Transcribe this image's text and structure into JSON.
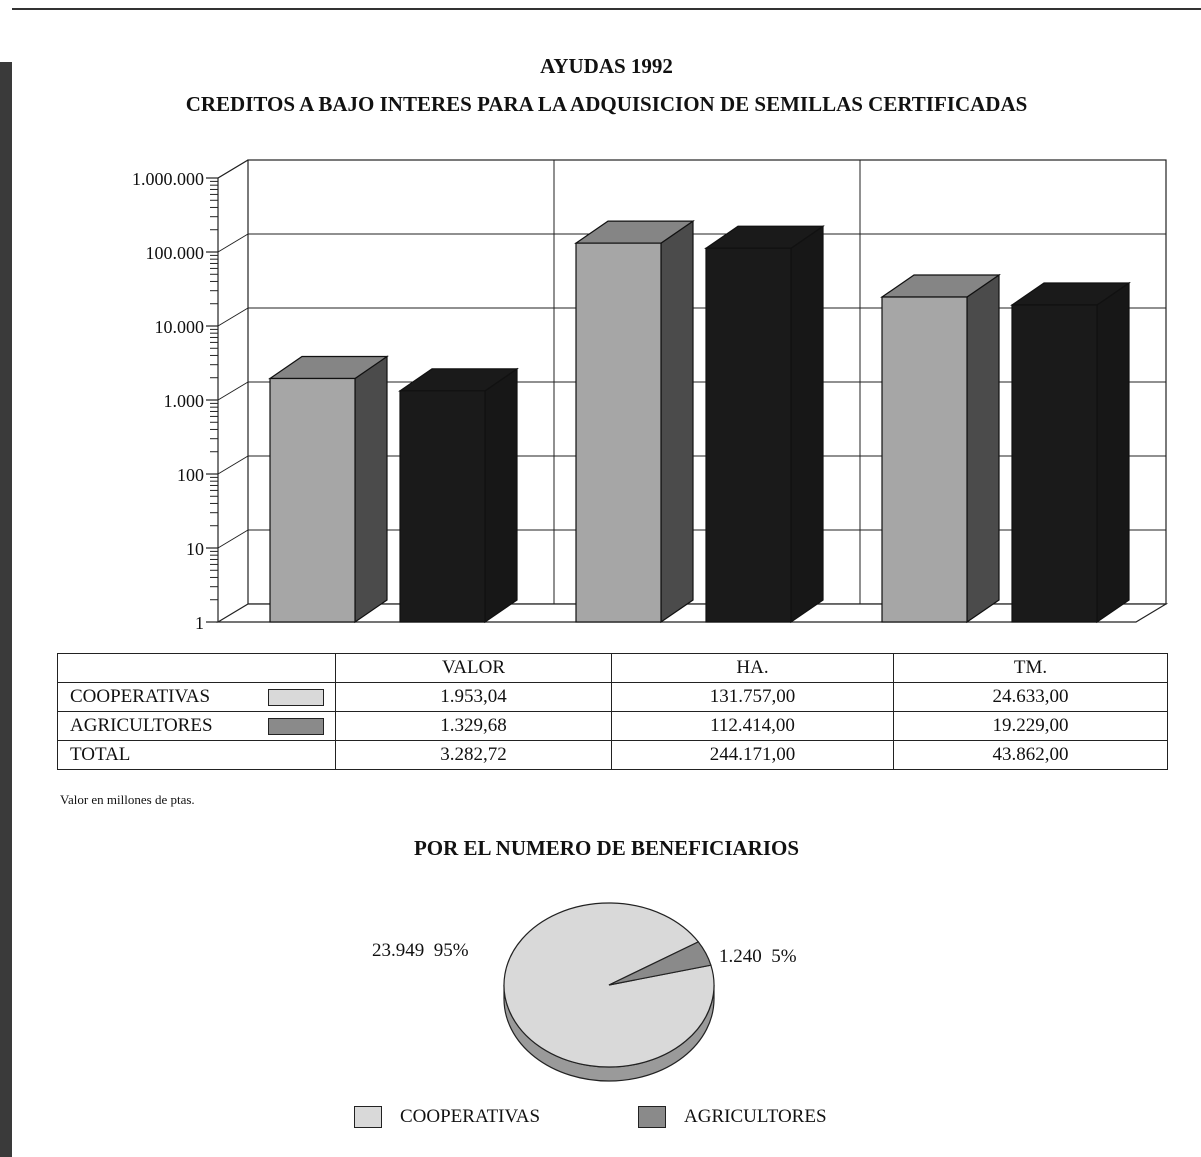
{
  "titles": {
    "line1": "AYUDAS 1992",
    "line2": "CREDITOS A BAJO INTERES PARA LA  ADQUISICION DE SEMILLAS CERTIFICADAS",
    "pie": "POR EL NUMERO DE BENEFICIARIOS"
  },
  "footnote": "Valor en millones de ptas.",
  "colors": {
    "cooperativas": "#a6a6a6",
    "agricultores": "#1a1a1a",
    "pie_cooperativas": "#d9d9d9",
    "pie_agricultores": "#8a8a8a"
  },
  "chart_data": [
    {
      "type": "bar",
      "scale": "log",
      "categories": [
        "VALOR",
        "HA.",
        "TM."
      ],
      "y_ticks": [
        "1",
        "10",
        "100",
        "1.000",
        "10.000",
        "100.000",
        "1.000.000"
      ],
      "ylim": [
        1,
        1000000
      ],
      "series": [
        {
          "name": "COOPERATIVAS",
          "values": [
            1953.04,
            131757.0,
            24633.0
          ],
          "labels": [
            "1.953,04",
            "131.757,00",
            "24.633,00"
          ]
        },
        {
          "name": "AGRICULTORES",
          "values": [
            1329.68,
            112414.0,
            19229.0
          ],
          "labels": [
            "1.329,68",
            "112.414,00",
            "19.229,00"
          ]
        }
      ],
      "table": {
        "total_label": "TOTAL",
        "totals": [
          "3.282,72",
          "244.171,00",
          "43.862,00"
        ]
      },
      "style": "3d"
    },
    {
      "type": "pie",
      "title": "POR EL NUMERO DE BENEFICIARIOS",
      "slices": [
        {
          "name": "COOPERATIVAS",
          "value": 23949,
          "value_label": "23.949",
          "percent_label": "95%"
        },
        {
          "name": "AGRICULTORES",
          "value": 1240,
          "value_label": "1.240",
          "percent_label": "5%"
        }
      ],
      "legend": [
        "COOPERATIVAS",
        "AGRICULTORES"
      ]
    }
  ]
}
